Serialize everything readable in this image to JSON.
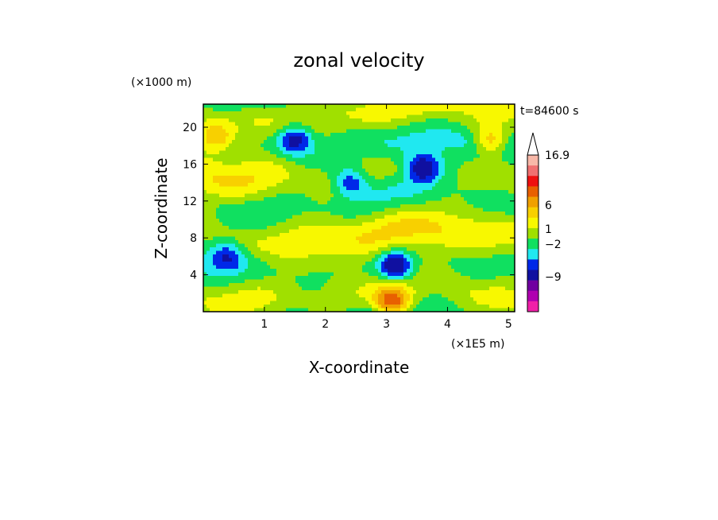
{
  "chart_data": {
    "type": "heatmap",
    "title": "zonal velocity",
    "time_label": "t=84600 s",
    "xlabel": "X-coordinate",
    "ylabel": "Z-coordinate",
    "x_unit": "(×1E5 m)",
    "y_unit": "(×1000 m)",
    "xlim": [
      0,
      5.1
    ],
    "ylim": [
      0,
      22.5
    ],
    "x_ticks": [
      "1",
      "2",
      "3",
      "4",
      "5"
    ],
    "y_ticks": [
      "4",
      "8",
      "12",
      "16",
      "20"
    ],
    "colorbar": {
      "labels": [
        {
          "text": "16.9",
          "value": 16.9
        },
        {
          "text": "6",
          "value": 6
        },
        {
          "text": "1",
          "value": 1
        },
        {
          "text": "−2",
          "value": -2
        },
        {
          "text": "−9",
          "value": -9
        }
      ],
      "colors_top_to_bottom": [
        "#f8b8a8",
        "#f07070",
        "#ee1010",
        "#e86000",
        "#f0a000",
        "#f8d000",
        "#f8f800",
        "#a0e000",
        "#10e060",
        "#20e8f0",
        "#0028e8",
        "#1010a0",
        "#7000a0",
        "#b000b0",
        "#f020a8"
      ],
      "extend_max": true
    },
    "features": [
      {
        "x": 0.2,
        "y": 19,
        "value": 4
      },
      {
        "x": 1.5,
        "y": 18.7,
        "value": -6
      },
      {
        "x": 2.4,
        "y": 14,
        "value": -5
      },
      {
        "x": 3.15,
        "y": 5,
        "value": -7
      },
      {
        "x": 3.1,
        "y": 1,
        "value": 8
      },
      {
        "x": 3.6,
        "y": 15.5,
        "value": -6
      },
      {
        "x": 4.7,
        "y": 18.5,
        "value": 5
      },
      {
        "x": 0.4,
        "y": 6,
        "value": -4
      }
    ]
  }
}
